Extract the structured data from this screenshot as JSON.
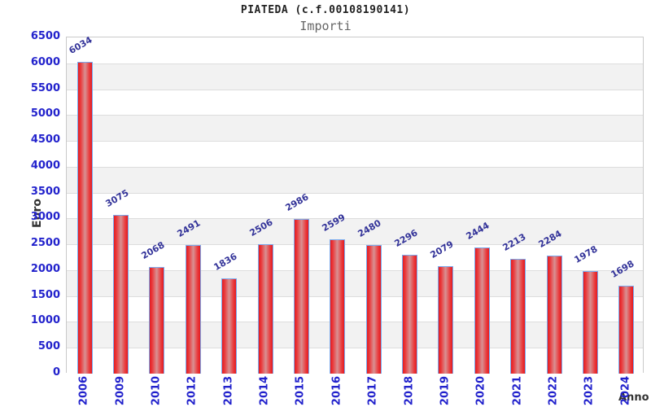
{
  "chart_data": {
    "type": "bar",
    "title": "PIATEDA (c.f.00108190141)",
    "subtitle": "Importi",
    "xlabel": "Anno",
    "ylabel": "Euro",
    "categories": [
      "2006",
      "2009",
      "2010",
      "2012",
      "2013",
      "2014",
      "2015",
      "2016",
      "2017",
      "2018",
      "2019",
      "2020",
      "2021",
      "2022",
      "2023",
      "2024"
    ],
    "values": [
      6034,
      3075,
      2068,
      2491,
      1836,
      2506,
      2986,
      2599,
      2480,
      2296,
      2079,
      2444,
      2213,
      2284,
      1978,
      1698
    ],
    "ylim": [
      0,
      6500
    ],
    "yticks": [
      0,
      500,
      1000,
      1500,
      2000,
      2500,
      3000,
      3500,
      4000,
      4500,
      5000,
      5500,
      6000,
      6500
    ],
    "grid": "horizontal gridlines with alternating background bands",
    "legend": "none",
    "value_label_rotation_deg": -30,
    "x_tick_rotation_deg": -90,
    "colors": {
      "bar_edge": "#e31b20",
      "bar_mid": "#ea3a3c",
      "bar_center": "#d89193",
      "bar_border": "#7aaaee",
      "tick_label": "#2222cc",
      "value_label": "#333399",
      "band": "#f2f2f2",
      "gridline": "#dddddd",
      "plot_border": "#c9c9c9",
      "title": "#222222",
      "subtitle": "#666666",
      "axis_label": "#333333"
    }
  }
}
